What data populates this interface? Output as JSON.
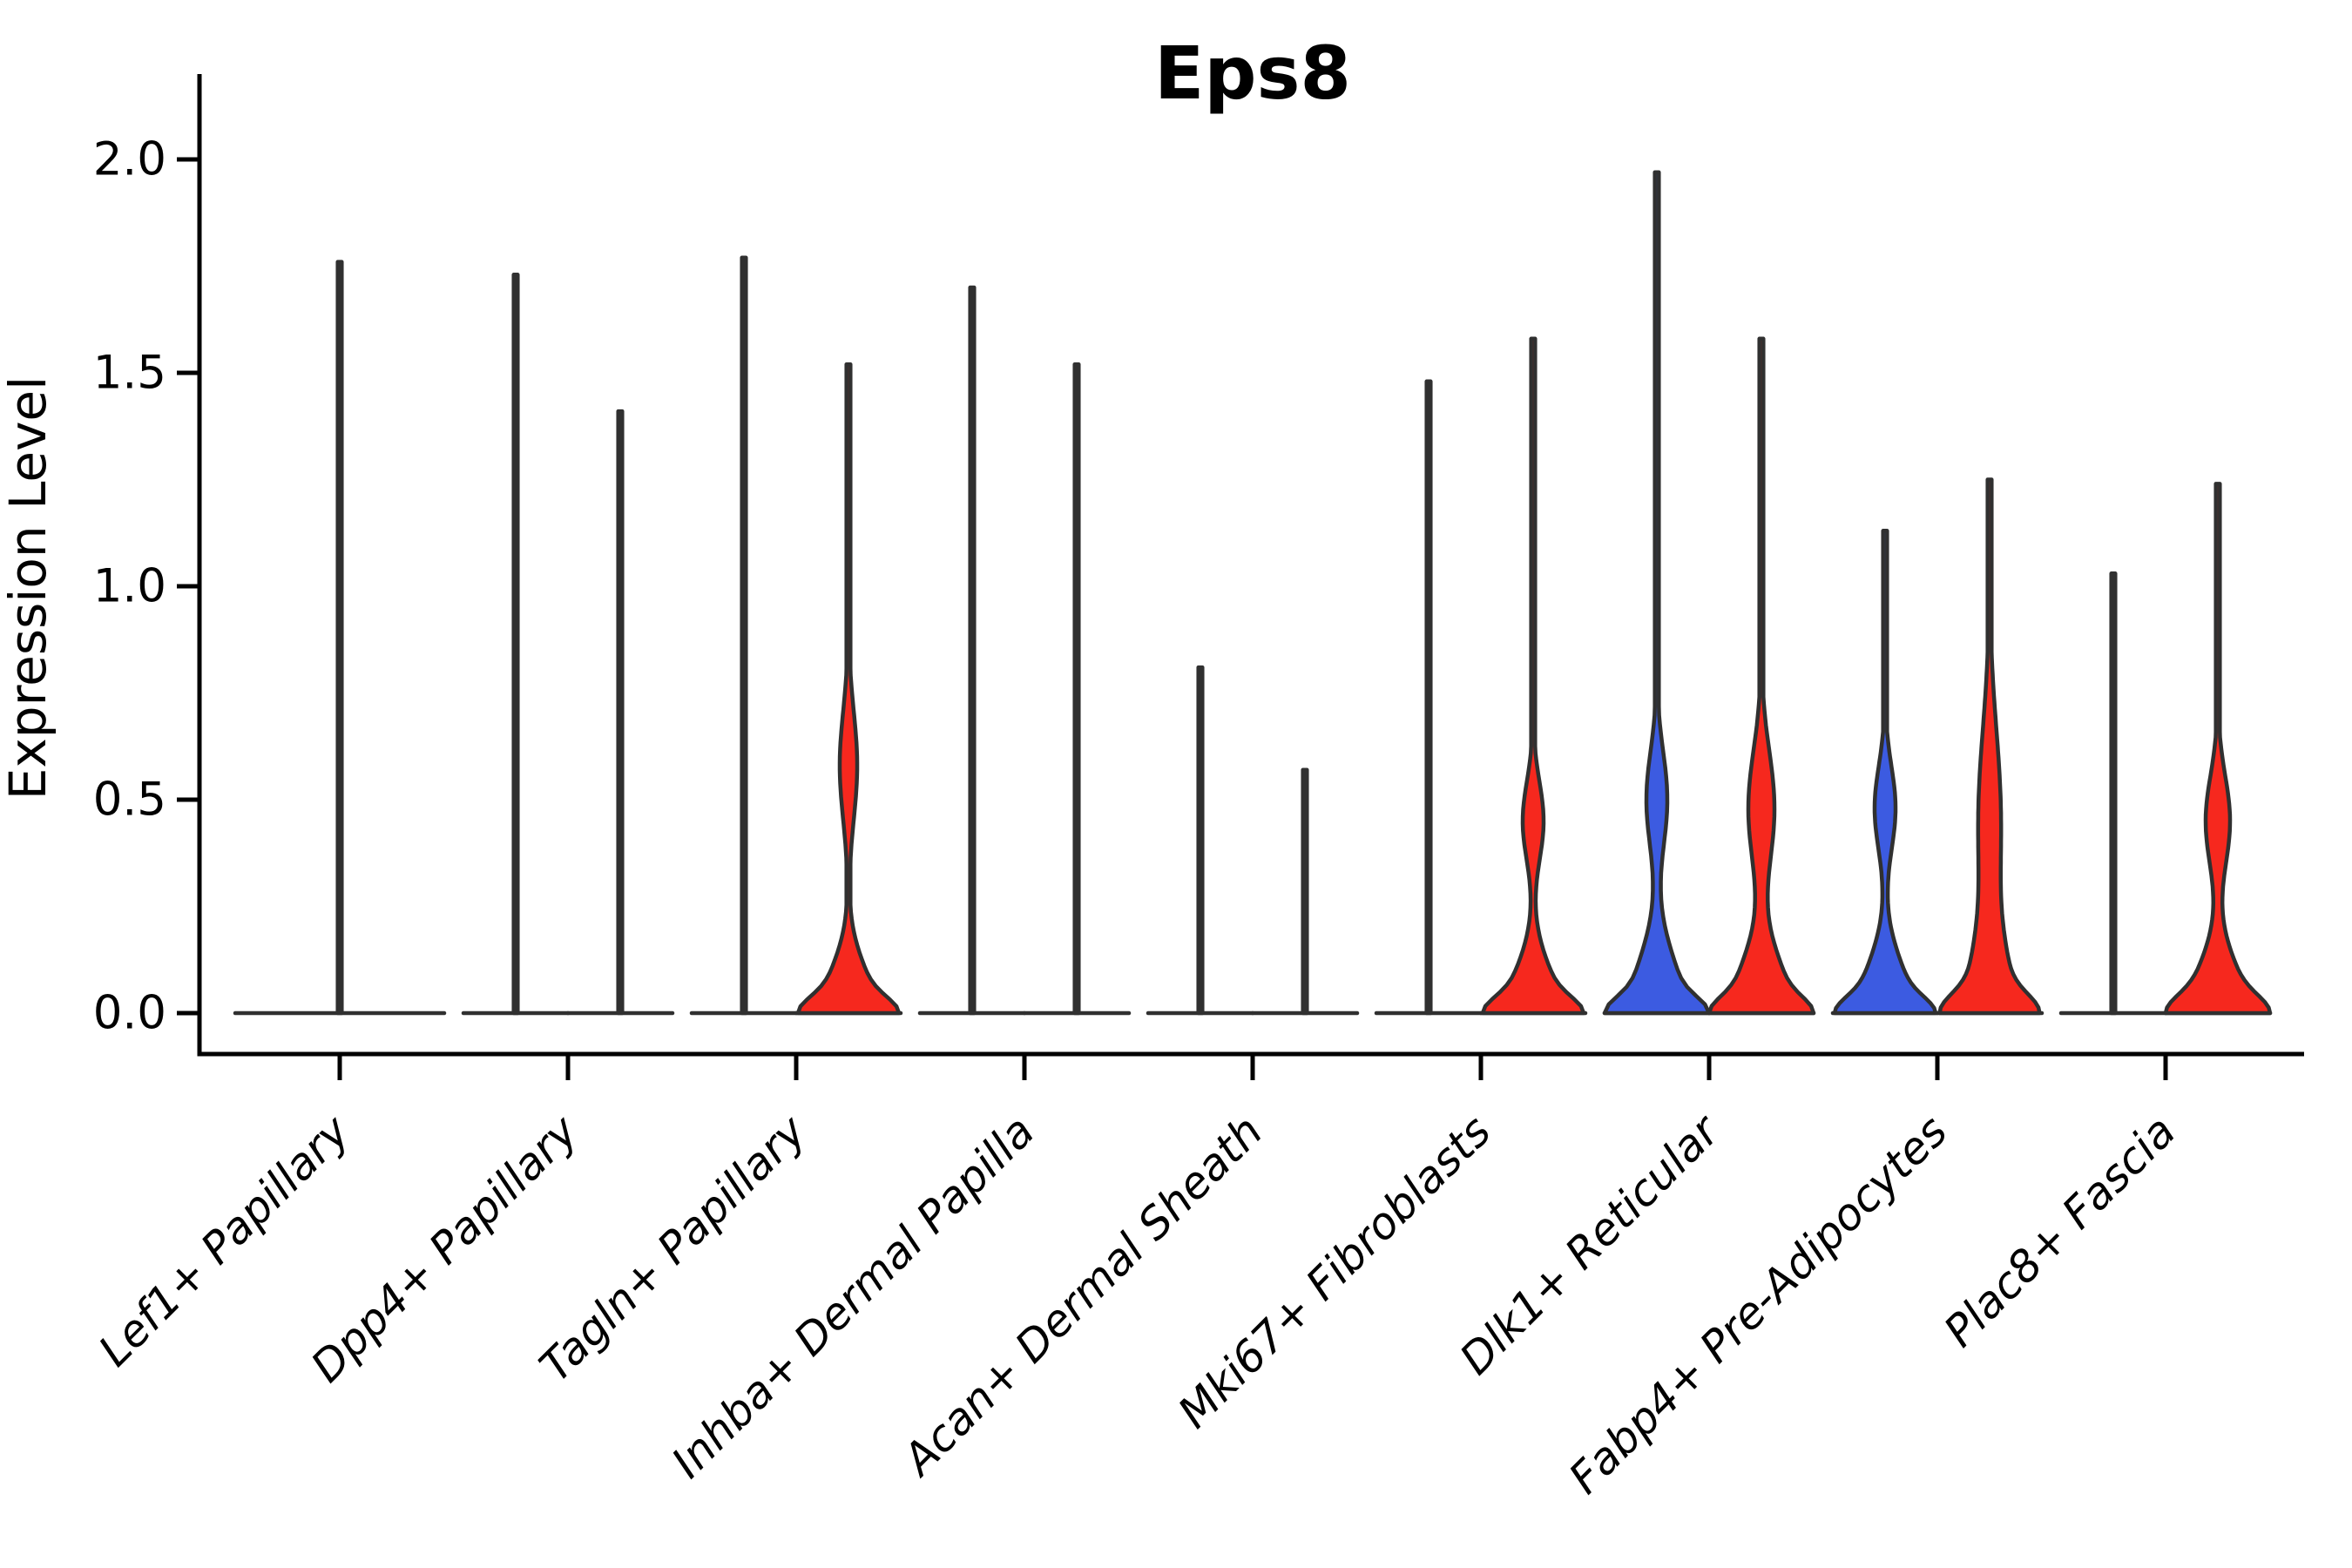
{
  "chart_data": {
    "type": "violin",
    "title": "Eps8",
    "ylabel": "Expression Level",
    "xlabel": "",
    "ylim": [
      0.0,
      2.05
    ],
    "yticks": [
      0.0,
      0.5,
      1.0,
      1.5,
      2.0
    ],
    "ytick_labels": [
      "0.0",
      "0.5",
      "1.0",
      "1.5",
      "2.0"
    ],
    "grid": false,
    "legend": "none",
    "x_label_rotation_deg": 45,
    "palette": {
      "red": "#f6281e",
      "blue": "#3c5be1",
      "outline": "#303030",
      "axis": "#000000"
    },
    "categories": [
      "Lef1+ Papillary",
      "Dpp4+ Papillary",
      "Tagln+ Papillary",
      "Inhba+ Dermal Papilla",
      "Acan+ Dermal Sheath",
      "Mki67+ Fibroblasts",
      "Dlk1+ Reticular",
      "Fabp4+ Pre-Adipocytes",
      "Plac8+ Fascia"
    ],
    "groups": [
      {
        "category": "Lef1+ Papillary",
        "violins": [
          {
            "position": "center",
            "fill": "none",
            "max_expression": 1.76,
            "density_bumps": []
          }
        ]
      },
      {
        "category": "Dpp4+ Papillary",
        "violins": [
          {
            "position": "left",
            "fill": "none",
            "max_expression": 1.73,
            "density_bumps": []
          },
          {
            "position": "right",
            "fill": "none",
            "max_expression": 1.41,
            "density_bumps": []
          }
        ]
      },
      {
        "category": "Tagln+ Papillary",
        "violins": [
          {
            "position": "left",
            "fill": "none",
            "max_expression": 1.77,
            "density_bumps": []
          },
          {
            "position": "right",
            "fill": "red",
            "max_expression": 1.52,
            "density_bumps": [
              [
                27,
                0,
                0.05
              ],
              [
                31,
                0,
                0.15
              ],
              [
                10,
                0.58,
                0.18
              ]
            ]
          }
        ]
      },
      {
        "category": "Inhba+ Dermal Papilla",
        "violins": [
          {
            "position": "left",
            "fill": "none",
            "max_expression": 1.7,
            "density_bumps": []
          },
          {
            "position": "right",
            "fill": "none",
            "max_expression": 1.52,
            "density_bumps": []
          }
        ]
      },
      {
        "category": "Acan+ Dermal Sheath",
        "violins": [
          {
            "position": "left",
            "fill": "none",
            "max_expression": 0.81,
            "density_bumps": []
          },
          {
            "position": "right",
            "fill": "none",
            "max_expression": 0.57,
            "density_bumps": []
          }
        ]
      },
      {
        "category": "Mki67+ Fibroblasts",
        "violins": [
          {
            "position": "left",
            "fill": "none",
            "max_expression": 1.48,
            "density_bumps": []
          },
          {
            "position": "right",
            "fill": "red",
            "max_expression": 1.58,
            "density_bumps": [
              [
                27,
                0,
                0.05
              ],
              [
                31,
                0,
                0.15
              ],
              [
                12,
                0.45,
                0.13
              ]
            ]
          }
        ]
      },
      {
        "category": "Dlk1+ Reticular",
        "violins": [
          {
            "position": "left",
            "fill": "blue",
            "max_expression": 1.97,
            "density_bumps": [
              [
                28,
                0,
                0.05
              ],
              [
                32,
                0,
                0.18
              ],
              [
                12,
                0.5,
                0.16
              ]
            ]
          },
          {
            "position": "right",
            "fill": "red",
            "max_expression": 1.58,
            "density_bumps": [
              [
                25,
                0,
                0.05
              ],
              [
                35,
                0,
                0.17
              ],
              [
                15,
                0.48,
                0.19
              ]
            ]
          }
        ]
      },
      {
        "category": "Fabp4+ Pre-Adipocytes",
        "violins": [
          {
            "position": "left",
            "fill": "blue",
            "max_expression": 1.13,
            "density_bumps": [
              [
                26,
                0,
                0.05
              ],
              [
                32,
                0,
                0.16
              ],
              [
                12,
                0.48,
                0.14
              ]
            ]
          },
          {
            "position": "right",
            "fill": "red",
            "max_expression": 1.25,
            "density_bumps": [
              [
                30,
                0,
                0.06
              ],
              [
                26,
                0,
                0.2
              ],
              [
                13,
                0.45,
                0.3
              ]
            ]
          }
        ]
      },
      {
        "category": "Plac8+ Fascia",
        "violins": [
          {
            "position": "left",
            "fill": "none",
            "max_expression": 1.03,
            "density_bumps": []
          },
          {
            "position": "right",
            "fill": "red",
            "max_expression": 1.24,
            "density_bumps": [
              [
                26,
                0,
                0.055
              ],
              [
                34,
                0,
                0.16
              ],
              [
                14,
                0.45,
                0.15
              ]
            ]
          }
        ]
      }
    ]
  }
}
